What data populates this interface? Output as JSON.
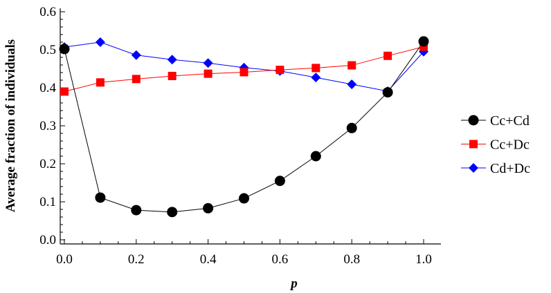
{
  "chart_data": {
    "type": "line",
    "title": "",
    "xlabel": "p",
    "ylabel": "Average fraction of individuals",
    "xlim": [
      0.0,
      1.0
    ],
    "ylim": [
      0.0,
      0.6
    ],
    "x_ticks": [
      "0.0",
      "0.2",
      "0.4",
      "0.6",
      "0.8",
      "1.0"
    ],
    "y_ticks": [
      "0.0",
      "0.1",
      "0.2",
      "0.3",
      "0.4",
      "0.5",
      "0.6"
    ],
    "x": [
      0.0,
      0.1,
      0.2,
      0.3,
      0.4,
      0.5,
      0.6,
      0.7,
      0.8,
      0.9,
      1.0
    ],
    "legend_position": "right",
    "grid": false,
    "series": [
      {
        "name": "Cc+Cd",
        "marker": "circle",
        "color": "#000000",
        "line_color": "#000000",
        "values": [
          0.502,
          0.111,
          0.078,
          0.073,
          0.083,
          0.109,
          0.155,
          0.22,
          0.294,
          0.388,
          0.522
        ]
      },
      {
        "name": "Cc+Dc",
        "marker": "square",
        "color": "#ff0000",
        "line_color": "#ff0000",
        "values": [
          0.39,
          0.414,
          0.423,
          0.431,
          0.437,
          0.441,
          0.447,
          0.452,
          0.459,
          0.484,
          0.508
        ]
      },
      {
        "name": "Cd+Dc",
        "marker": "diamond",
        "color": "#0000ff",
        "line_color": "#0000ff",
        "values": [
          0.507,
          0.52,
          0.486,
          0.474,
          0.465,
          0.453,
          0.444,
          0.427,
          0.409,
          0.391,
          0.495
        ]
      }
    ]
  }
}
